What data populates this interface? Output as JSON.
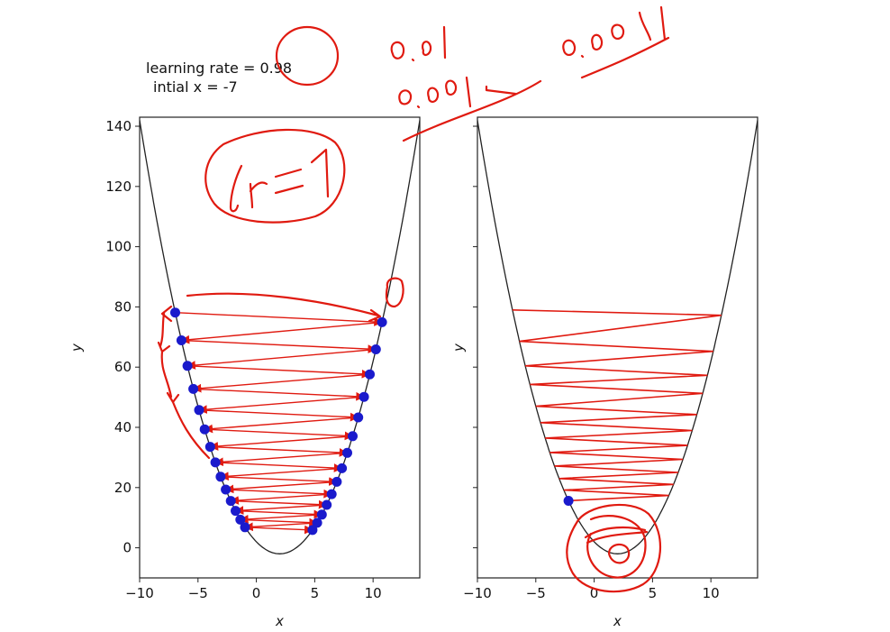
{
  "annotations": {
    "learning_rate_label": "learning rate = 0.98",
    "initial_x_label": "intial x = -7"
  },
  "chart_data": [
    {
      "type": "line",
      "title": "",
      "xlabel": "x",
      "ylabel": "y",
      "xlim": [
        -10,
        14
      ],
      "ylim": [
        -10,
        143
      ],
      "xticks": [
        -10,
        -5,
        0,
        5,
        10
      ],
      "yticks": [
        0,
        20,
        40,
        60,
        80,
        100,
        120,
        140
      ],
      "curve": {
        "function": "y = (x - 2)^2 - 2",
        "color": "#222222"
      },
      "points_color": "#1a1acc",
      "arrow_color": "#e01a10",
      "gradient_descent_x": [
        -6.95,
        10.77,
        -6.42,
        10.24,
        -5.9,
        9.72,
        -5.4,
        9.22,
        -4.91,
        8.73,
        -4.43,
        8.25,
        -3.96,
        7.79,
        -3.51,
        7.33,
        -3.06,
        6.89,
        -2.62,
        6.45,
        -2.19,
        6.03,
        -1.78,
        5.61,
        -1.37,
        5.21,
        -0.97,
        4.81
      ]
    },
    {
      "type": "line",
      "title": "",
      "xlabel": "x",
      "ylabel": "y",
      "xlim": [
        -10,
        14
      ],
      "ylim": [
        -10,
        143
      ],
      "xticks": [
        -10,
        -5,
        0,
        5,
        10
      ],
      "yticks": [
        0,
        20,
        40,
        60,
        80,
        100,
        120,
        140
      ],
      "curve": {
        "function": "y = (x - 2)^2 - 2",
        "color": "#222222"
      },
      "points_color": "#1a1acc",
      "line_color": "#e01a10",
      "zigzag_x": [
        -7.0,
        10.9,
        -6.4,
        10.2,
        -5.9,
        9.7,
        -5.5,
        9.3,
        -5.0,
        8.8,
        -4.6,
        8.4,
        -4.2,
        8.0,
        -3.8,
        7.6,
        -3.4,
        7.2,
        -3.0,
        6.8,
        -2.6,
        6.4,
        -2.2
      ],
      "end_point": {
        "x": -2.2,
        "y": 15.6
      }
    }
  ]
}
